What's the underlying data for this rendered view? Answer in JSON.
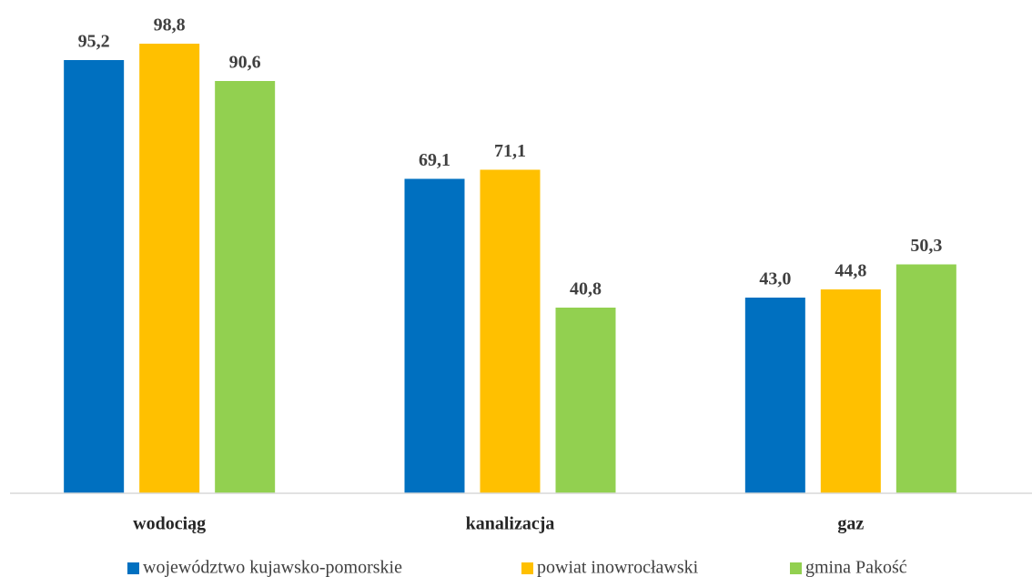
{
  "chart_data": {
    "type": "bar",
    "categories": [
      "wodociąg",
      "kanalizacja",
      "gaz"
    ],
    "series": [
      {
        "name": "województwo kujawsko-pomorskie",
        "color": "#0070c0",
        "values": [
          95.2,
          69.1,
          43.0
        ],
        "value_labels": [
          "95,2",
          "69,1",
          "43,0"
        ]
      },
      {
        "name": "powiat inowrocławski",
        "color": "#ffc000",
        "values": [
          98.8,
          71.1,
          44.8
        ],
        "value_labels": [
          "98,8",
          "71,1",
          "44,8"
        ]
      },
      {
        "name": "gmina Pakość",
        "color": "#92d050",
        "values": [
          90.6,
          40.8,
          50.3
        ],
        "value_labels": [
          "90,6",
          "40,8",
          "50,3"
        ]
      }
    ],
    "ylim": [
      0,
      100
    ],
    "legend": "bottom"
  }
}
